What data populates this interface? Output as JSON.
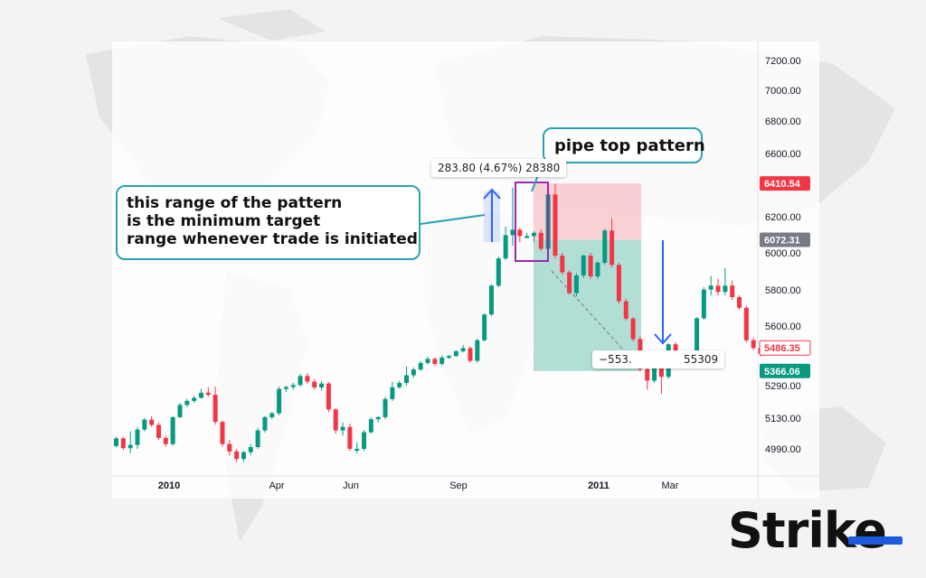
{
  "brand": {
    "name": "Strike",
    "accent": "#1e5bdc"
  },
  "annotations": {
    "range_lines": [
      "this range of the pattern",
      "is the minimum target",
      "range whenever trade is initiated"
    ],
    "pipe_top": "pipe top pattern",
    "measure_top": "283.80 (4.67%) 28380",
    "measure_bottom": "−553.               55309"
  },
  "chart_data": {
    "type": "candlestick",
    "y_axis": {
      "ticks": [
        7200,
        7000,
        6800,
        6600,
        6200,
        6000,
        5800,
        5600,
        5290,
        5130,
        4990
      ],
      "tick_labels": [
        "7200.00",
        "7000.00",
        "6800.00",
        "6600.00",
        "6200.00",
        "6000.00",
        "5800.00",
        "5600.00",
        "5290.00",
        "5130.00",
        "4990.00"
      ]
    },
    "x_axis": {
      "labels": [
        "2010",
        "Apr",
        "Jun",
        "Sep",
        "2011",
        "Mar"
      ]
    },
    "price_badges": [
      {
        "label": "6410.54",
        "value": 6410.54,
        "color": "#f23645"
      },
      {
        "label": "6072.31",
        "value": 6072.31,
        "color": "#787b86"
      },
      {
        "label": "5486.35",
        "value": 5486.35,
        "color": "#ffffff"
      },
      {
        "label": "5366.06",
        "value": 5366.06,
        "color": "#089981"
      }
    ],
    "colors": {
      "up": "#089981",
      "down": "#f23645"
    },
    "candles": [
      [
        5003,
        5038,
        4997,
        5045
      ],
      [
        5038,
        4993,
        4985,
        5045
      ],
      [
        4993,
        5008,
        4970,
        5070
      ],
      [
        5008,
        5078,
        4990,
        5090
      ],
      [
        5078,
        5123,
        5070,
        5130
      ],
      [
        5123,
        5099,
        5090,
        5140
      ],
      [
        5099,
        5040,
        5030,
        5110
      ],
      [
        5040,
        5012,
        5000,
        5050
      ],
      [
        5012,
        5135,
        5005,
        5140
      ],
      [
        5135,
        5195,
        5130,
        5205
      ],
      [
        5195,
        5215,
        5185,
        5225
      ],
      [
        5215,
        5230,
        5205,
        5240
      ],
      [
        5230,
        5255,
        5225,
        5275
      ],
      [
        5255,
        5245,
        5235,
        5282
      ],
      [
        5245,
        5113,
        5100,
        5285
      ],
      [
        5113,
        5012,
        5000,
        5120
      ],
      [
        5012,
        4978,
        4960,
        5030
      ],
      [
        4978,
        4944,
        4930,
        4990
      ],
      [
        4944,
        4975,
        4930,
        4980
      ],
      [
        4975,
        4998,
        4960,
        5012
      ],
      [
        4998,
        5074,
        4990,
        5085
      ],
      [
        5074,
        5135,
        5065,
        5140
      ],
      [
        5135,
        5154,
        5126,
        5160
      ],
      [
        5154,
        5274,
        5145,
        5285
      ],
      [
        5274,
        5283,
        5260,
        5290
      ],
      [
        5283,
        5293,
        5270,
        5305
      ],
      [
        5293,
        5340,
        5285,
        5350
      ],
      [
        5340,
        5311,
        5300,
        5355
      ],
      [
        5311,
        5281,
        5270,
        5325
      ],
      [
        5281,
        5301,
        5265,
        5315
      ],
      [
        5301,
        5173,
        5160,
        5310
      ],
      [
        5173,
        5074,
        5060,
        5180
      ],
      [
        5074,
        5090,
        5050,
        5110
      ],
      [
        5090,
        4990,
        4980,
        5105
      ],
      [
        4990,
        4990,
        4970,
        5020
      ],
      [
        4990,
        5066,
        4980,
        5075
      ],
      [
        5066,
        5125,
        5060,
        5135
      ],
      [
        5125,
        5135,
        5110,
        5140
      ],
      [
        5135,
        5224,
        5125,
        5235
      ],
      [
        5224,
        5282,
        5215,
        5310
      ],
      [
        5282,
        5304,
        5275,
        5315
      ],
      [
        5304,
        5344,
        5290,
        5390
      ],
      [
        5344,
        5374,
        5330,
        5385
      ],
      [
        5374,
        5408,
        5365,
        5418
      ],
      [
        5408,
        5429,
        5400,
        5442
      ],
      [
        5429,
        5403,
        5390,
        5438
      ],
      [
        5403,
        5436,
        5395,
        5448
      ],
      [
        5436,
        5444,
        5430,
        5450
      ],
      [
        5444,
        5469,
        5440,
        5475
      ],
      [
        5469,
        5485,
        5462,
        5500
      ],
      [
        5485,
        5419,
        5410,
        5495
      ],
      [
        5419,
        5526,
        5410,
        5535
      ],
      [
        5526,
        5664,
        5520,
        5670
      ],
      [
        5664,
        5823,
        5655,
        5830
      ],
      [
        5823,
        5970,
        5815,
        5980
      ],
      [
        5970,
        6098,
        5960,
        6145
      ],
      [
        6098,
        6128,
        6040,
        6385
      ],
      [
        6128,
        6093,
        6060,
        6140
      ],
      [
        6093,
        6093,
        6080,
        6110
      ],
      [
        6093,
        6111,
        6060,
        6120
      ],
      [
        6111,
        6023,
        6010,
        6130
      ],
      [
        6023,
        6341,
        6015,
        6350
      ],
      [
        6341,
        5985,
        5970,
        6410
      ],
      [
        5985,
        5895,
        5880,
        6000
      ],
      [
        5895,
        5782,
        5775,
        5905
      ],
      [
        5782,
        5878,
        5765,
        5890
      ],
      [
        5878,
        5985,
        5865,
        5990
      ],
      [
        5985,
        5873,
        5860,
        6000
      ],
      [
        5873,
        5947,
        5860,
        5955
      ],
      [
        5947,
        6124,
        5935,
        6135
      ],
      [
        6124,
        5935,
        5920,
        6190
      ],
      [
        5935,
        5737,
        5725,
        5945
      ],
      [
        5737,
        5641,
        5630,
        5750
      ],
      [
        5641,
        5532,
        5520,
        5650
      ],
      [
        5532,
        5376,
        5365,
        5545
      ],
      [
        5376,
        5316,
        5270,
        5395
      ],
      [
        5316,
        5419,
        5305,
        5430
      ],
      [
        5419,
        5336,
        5250,
        5425
      ],
      [
        5336,
        5505,
        5325,
        5510
      ],
      [
        5505,
        5445,
        5430,
        5515
      ],
      [
        5445,
        5406,
        5395,
        5455
      ],
      [
        5406,
        5426,
        5395,
        5435
      ],
      [
        5426,
        5643,
        5415,
        5650
      ],
      [
        5643,
        5802,
        5635,
        5815
      ],
      [
        5802,
        5823,
        5770,
        5875
      ],
      [
        5823,
        5789,
        5770,
        5860
      ],
      [
        5789,
        5823,
        5770,
        5920
      ],
      [
        5823,
        5760,
        5745,
        5850
      ],
      [
        5760,
        5701,
        5690,
        5770
      ],
      [
        5701,
        5526,
        5515,
        5712
      ],
      [
        5526,
        5486,
        5475,
        5540
      ],
      [
        5486,
        5456,
        5440,
        5500
      ]
    ],
    "zones": {
      "pink": {
        "from": 6410.54,
        "to": 6072.31
      },
      "teal": {
        "from": 6072.31,
        "to": 5366.06
      }
    }
  }
}
